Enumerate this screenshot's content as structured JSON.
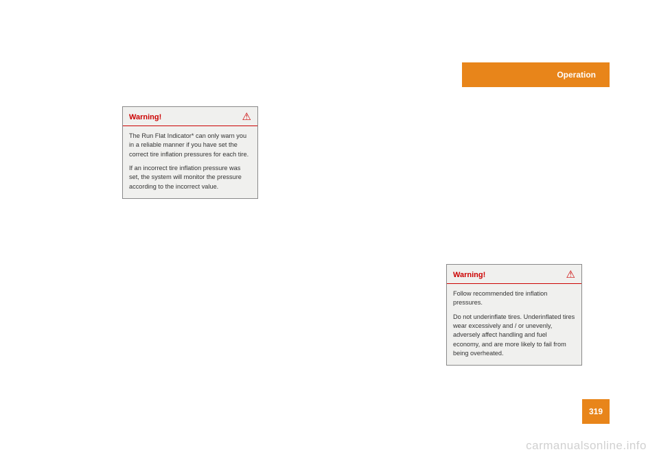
{
  "header": {
    "tab_label": "Operation"
  },
  "page_number": "319",
  "warning_top": {
    "title": "Warning!",
    "p1": "The Run Flat Indicator* can only warn you in a reliable manner if you have set the correct tire inflation pressures for each tire.",
    "p2": "If an incorrect tire inflation pressure was set, the system will monitor the pressure according to the incorrect value."
  },
  "warning_bottom": {
    "title": "Warning!",
    "p1": "Follow recommended tire inflation pressures.",
    "p2": "Do not underinflate tires. Underinflated tires wear excessively and / or unevenly, adversely affect handling and fuel economy, and are more likely to fail from being overheated."
  },
  "watermark": "carmanualsonline.info",
  "colors": {
    "accent": "#e8851a",
    "warning_red": "#c00",
    "box_bg": "#f0f0ee",
    "box_border": "#888",
    "watermark_color": "#d0d0d0"
  }
}
